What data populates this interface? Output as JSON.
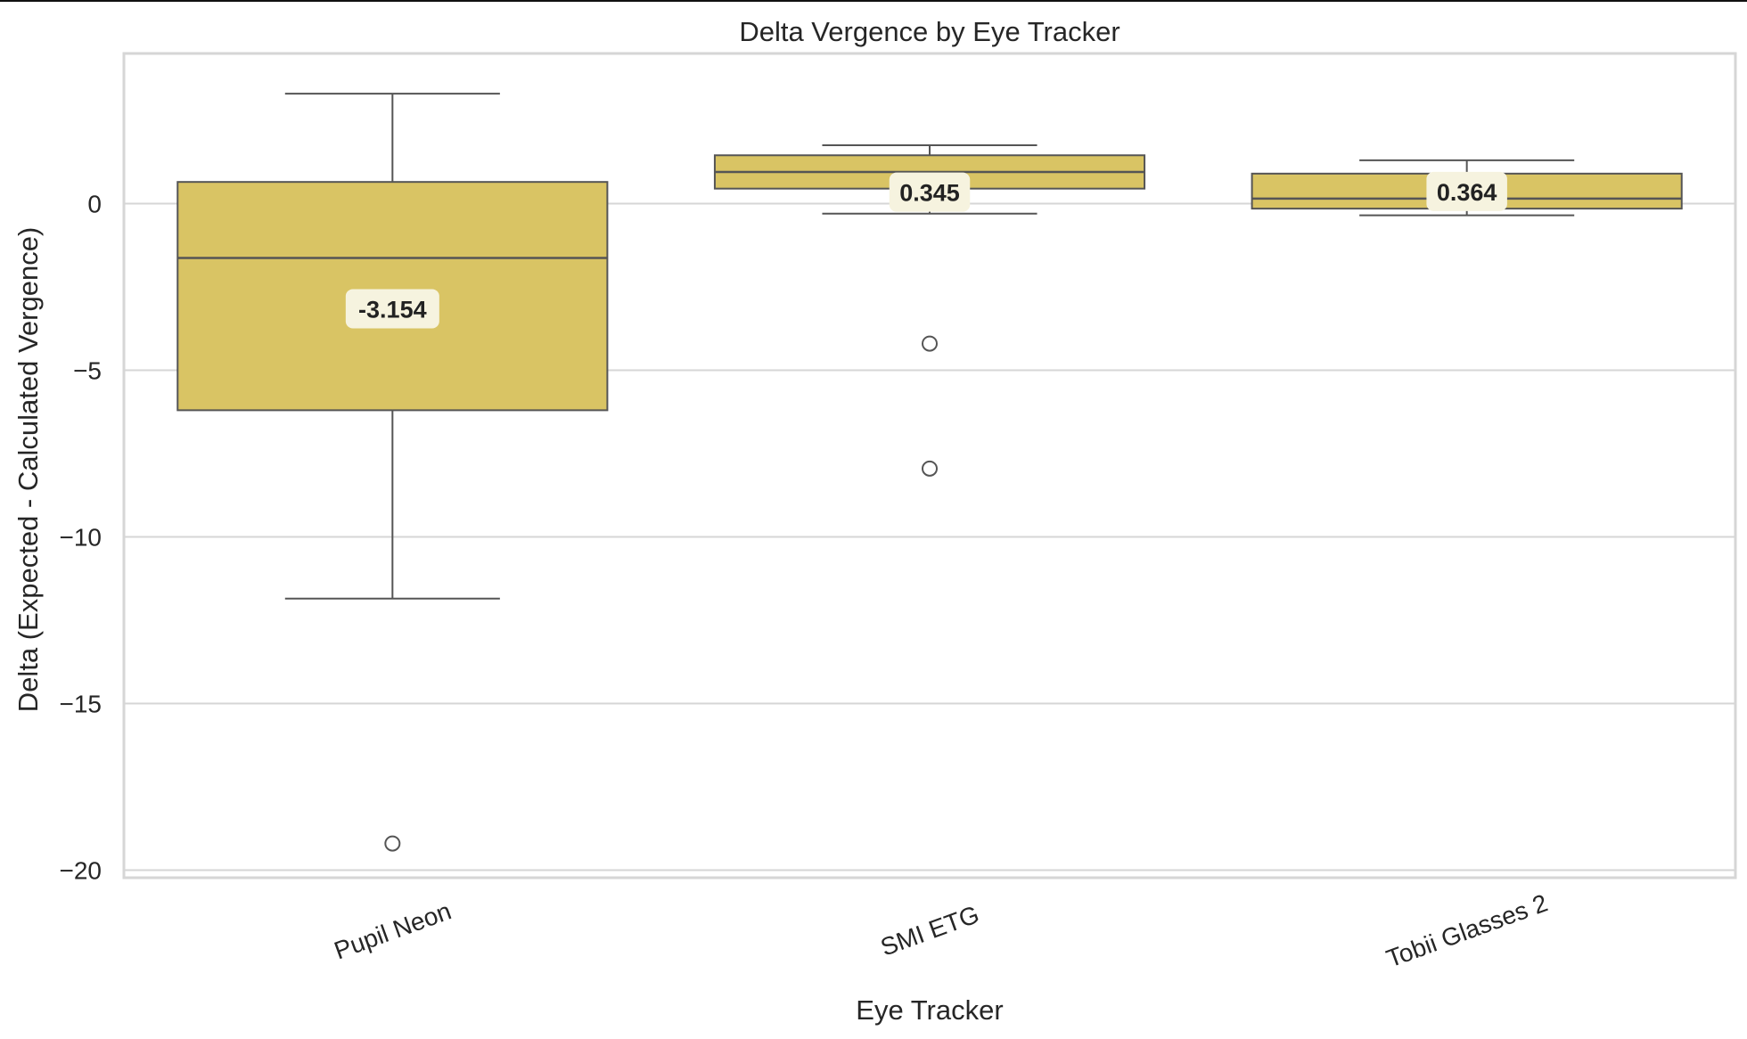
{
  "colors": {
    "box_fill": "#d9c464",
    "box_edge": "#555555",
    "grid": "#d6d6d6",
    "label_bg": "#f6f3df"
  },
  "chart_data": {
    "type": "box",
    "title": "Delta Vergence by Eye Tracker",
    "xlabel": "Eye Tracker",
    "ylabel": "Delta (Expected - Calculated Vergence)",
    "ylim": [
      -20.3,
      4.5
    ],
    "yticks": [
      0,
      -5,
      -10,
      -15,
      -20
    ],
    "ytick_labels": [
      "0",
      "−5",
      "−10",
      "−15",
      "−20"
    ],
    "grid": true,
    "xtick_rotation_deg": -20,
    "categories": [
      "Pupil Neon",
      "SMI ETG",
      "Tobii Glasses 2"
    ],
    "boxes": [
      {
        "category": "Pupil Neon",
        "whisker_low": -11.85,
        "q1": -6.2,
        "median": -1.63,
        "q3": 0.65,
        "whisker_high": 3.3,
        "outliers": [
          -19.2
        ],
        "mean": -3.154,
        "mean_label": "-3.154"
      },
      {
        "category": "SMI ETG",
        "whisker_low": -0.3,
        "q1": 0.45,
        "median": 0.95,
        "q3": 1.45,
        "whisker_high": 1.75,
        "outliers": [
          -4.2,
          -7.95
        ],
        "mean": 0.345,
        "mean_label": "0.345"
      },
      {
        "category": "Tobii Glasses 2",
        "whisker_low": -0.35,
        "q1": -0.15,
        "median": 0.15,
        "q3": 0.9,
        "whisker_high": 1.3,
        "outliers": [],
        "mean": 0.364,
        "mean_label": "0.364"
      }
    ]
  }
}
